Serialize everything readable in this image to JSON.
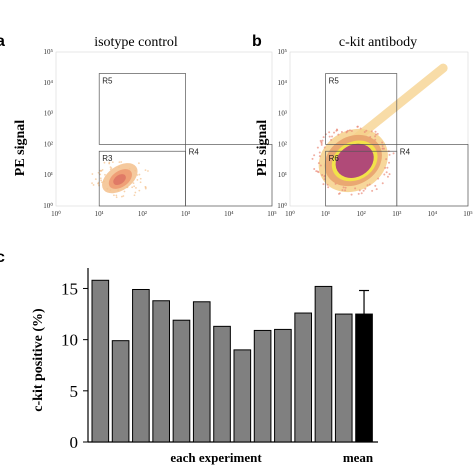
{
  "panels": {
    "a": {
      "letter": "a"
    },
    "b": {
      "letter": "b"
    },
    "c": {
      "letter": "c"
    }
  },
  "flow_tick_labels": [
    "10⁰",
    "10¹",
    "10²",
    "10³",
    "10⁴",
    "10⁵"
  ],
  "chart_data": [
    {
      "type": "scatter",
      "panel": "a",
      "title": "isotype control",
      "ylabel": "PE signal",
      "xlabel": "",
      "xscale": "log",
      "yscale": "log",
      "xlim": [
        1,
        100000
      ],
      "ylim": [
        1,
        100000
      ],
      "gates": [
        {
          "name": "R5",
          "x": [
            10,
            1000
          ],
          "y": [
            100,
            20000
          ]
        },
        {
          "name": "R3",
          "x": [
            10,
            1000
          ],
          "y": [
            1,
            60
          ]
        },
        {
          "name": "R4",
          "x": [
            1000,
            100000
          ],
          "y": [
            1,
            100
          ]
        }
      ],
      "population": {
        "center": [
          30,
          8
        ],
        "spread": "low"
      },
      "colors": {
        "outer": "#f3c08c",
        "mid": "#ee9a72",
        "core": "#e07a66"
      }
    },
    {
      "type": "scatter",
      "panel": "b",
      "title": "c-kit  antibody",
      "ylabel": "PE signal",
      "xlabel": "",
      "xscale": "log",
      "yscale": "log",
      "xlim": [
        1,
        100000
      ],
      "ylim": [
        1,
        100000
      ],
      "gates": [
        {
          "name": "R5",
          "x": [
            10,
            1000
          ],
          "y": [
            100,
            20000
          ]
        },
        {
          "name": "R6",
          "x": [
            10,
            1000
          ],
          "y": [
            1,
            60
          ]
        },
        {
          "name": "R4",
          "x": [
            1000,
            100000
          ],
          "y": [
            1,
            100
          ]
        }
      ],
      "population": {
        "center": [
          60,
          30
        ],
        "spread": "high"
      },
      "colors": {
        "outer": "#f6d08a",
        "mid": "#e8a36e",
        "rim": "#f2e24a",
        "core": "#b04a78"
      }
    },
    {
      "type": "bar",
      "panel": "c",
      "ylabel": "c-kit positive (%)",
      "xlabel": "each experiment",
      "mean_label": "mean",
      "ylim": [
        0,
        17
      ],
      "yticks": [
        0,
        5,
        10,
        15
      ],
      "values": [
        15.8,
        9.9,
        14.9,
        13.8,
        11.9,
        13.7,
        11.3,
        9.0,
        10.9,
        11.0,
        12.6,
        15.2,
        12.5
      ],
      "mean": {
        "value": 12.5,
        "error": 2.3
      },
      "colors": {
        "bar": "#808080",
        "mean": "#000000",
        "outline": "#000000"
      }
    }
  ]
}
